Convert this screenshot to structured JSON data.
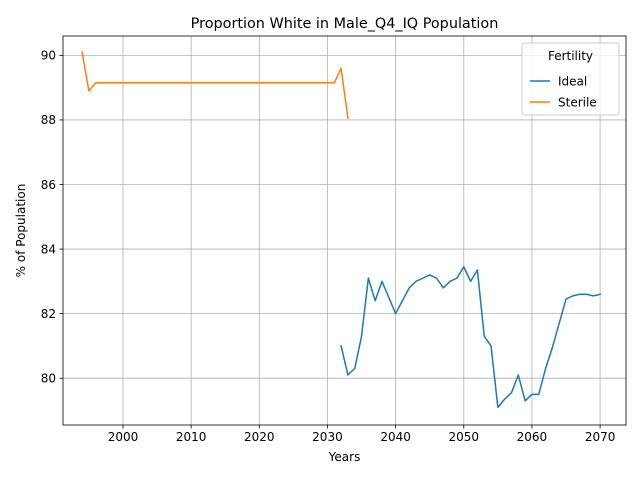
{
  "chart_data": {
    "type": "line",
    "title": "Proportion White in Male_Q4_IQ Population",
    "xlabel": "Years",
    "ylabel": "% of Population",
    "xlim": [
      1991.2,
      2073.8
    ],
    "ylim": [
      78.55,
      90.6
    ],
    "xticks": [
      2000,
      2010,
      2020,
      2030,
      2040,
      2050,
      2060,
      2070
    ],
    "xtick_labels": [
      "2000",
      "2010",
      "2020",
      "2030",
      "2040",
      "2050",
      "2060",
      "2070"
    ],
    "yticks": [
      80,
      82,
      84,
      86,
      88,
      90
    ],
    "ytick_labels": [
      "80",
      "82",
      "84",
      "86",
      "88",
      "90"
    ],
    "grid": true,
    "legend": {
      "title": "Fertility",
      "placement": "top-right"
    },
    "series": [
      {
        "name": "Ideal",
        "color": "#1f77b4",
        "x": [
          2032,
          2033,
          2034,
          2035,
          2036,
          2037,
          2038,
          2039,
          2040,
          2041,
          2042,
          2043,
          2044,
          2045,
          2046,
          2047,
          2048,
          2049,
          2050,
          2051,
          2052,
          2053,
          2054,
          2055,
          2056,
          2057,
          2058,
          2059,
          2060,
          2061,
          2062,
          2063,
          2064,
          2065,
          2066,
          2067,
          2068,
          2069,
          2070
        ],
        "y": [
          81.0,
          80.1,
          80.3,
          81.3,
          83.1,
          82.4,
          83.0,
          82.5,
          82.0,
          82.4,
          82.8,
          83.0,
          83.1,
          83.2,
          83.1,
          82.8,
          83.0,
          83.1,
          83.45,
          83.0,
          83.35,
          81.3,
          81.0,
          79.1,
          79.35,
          79.55,
          80.1,
          79.3,
          79.5,
          79.5,
          80.3,
          80.95,
          81.7,
          82.45,
          82.55,
          82.6,
          82.6,
          82.55,
          82.6
        ]
      },
      {
        "name": "Sterile",
        "color": "#ff7f0e",
        "x": [
          1994,
          1995,
          1996,
          1997,
          2000,
          2005,
          2010,
          2015,
          2020,
          2025,
          2030,
          2031,
          2032,
          2033
        ],
        "y": [
          90.1,
          88.9,
          89.15,
          89.15,
          89.15,
          89.15,
          89.15,
          89.15,
          89.15,
          89.15,
          89.15,
          89.15,
          89.6,
          88.05
        ]
      }
    ]
  }
}
